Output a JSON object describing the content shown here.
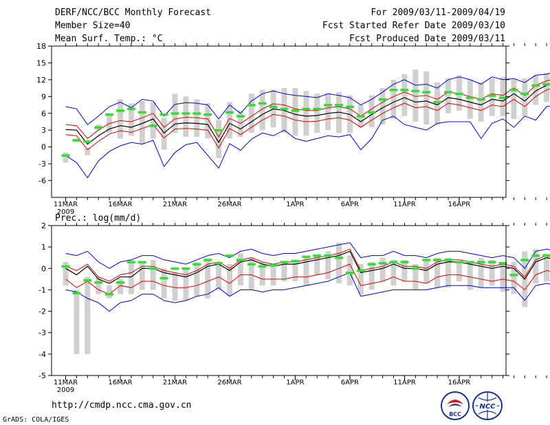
{
  "header": {
    "title": "DERF/NCC/BCC Monthly Forecast",
    "member_size": "Member Size=40",
    "variable": "Mean Surf. Temp.: °C",
    "period": "For 2009/03/11-2009/04/19",
    "started": "Fcst Started Refer Date 2009/03/10",
    "produced": "Fcst Produced Date 2009/03/11"
  },
  "footer": {
    "url": "http://cmdp.ncc.cma.gov.cn",
    "credit": "GrADS: COLA/IGES",
    "logo_bcc": "BCC",
    "logo_ncc": "NCC"
  },
  "colors": {
    "box": "#d0d0d0",
    "green": "#33dd33",
    "envelope": "#0000dd",
    "spread": "#dd0000",
    "mean": "#000000"
  },
  "chart_data": [
    {
      "type": "line",
      "title": "Mean Surf. Temp.: °C",
      "xlabel": "",
      "ylabel": "",
      "x_ticks": [
        "11MAR",
        "16MAR",
        "21MAR",
        "26MAR",
        "1APR",
        "6APR",
        "11APR",
        "16APR"
      ],
      "x_tick_days": [
        0,
        5,
        10,
        15,
        21,
        26,
        31,
        36
      ],
      "year_label": "2009",
      "ylim": [
        -9,
        18
      ],
      "y_ticks": [
        -6,
        -3,
        0,
        3,
        6,
        9,
        12,
        15,
        18
      ],
      "grid": false,
      "series": [
        {
          "name": "mean",
          "values": [
            3.1,
            3.0,
            0.5,
            2.0,
            3.2,
            3.8,
            3.5,
            4.2,
            5.0,
            2.5,
            4.1,
            4.3,
            4.2,
            4.0,
            0.8,
            4.2,
            3.2,
            4.5,
            5.8,
            6.8,
            6.5,
            5.8,
            5.5,
            5.6,
            6.0,
            6.2,
            5.8,
            4.5,
            5.8,
            7.0,
            8.0,
            8.8,
            8.0,
            8.2,
            7.5,
            8.8,
            8.5,
            8.0,
            7.5,
            8.5,
            8.2,
            9.5,
            8.2,
            10.0,
            11.0,
            11.5,
            12.0
          ]
        },
        {
          "name": "upper",
          "values": [
            4.0,
            3.8,
            1.5,
            3.0,
            4.2,
            4.7,
            4.5,
            5.2,
            6.0,
            3.5,
            5.0,
            5.3,
            5.2,
            5.0,
            1.8,
            5.1,
            4.2,
            5.5,
            6.8,
            7.7,
            7.5,
            6.8,
            6.5,
            6.5,
            7.0,
            7.2,
            6.8,
            5.5,
            6.8,
            8.0,
            9.0,
            9.8,
            9.0,
            9.2,
            8.5,
            9.8,
            9.5,
            9.0,
            8.5,
            9.5,
            9.2,
            10.5,
            9.2,
            11.0,
            11.8,
            12.3,
            12.8
          ]
        },
        {
          "name": "lower",
          "values": [
            2.2,
            2.0,
            -0.5,
            1.0,
            2.3,
            2.9,
            2.6,
            3.3,
            4.0,
            1.6,
            3.2,
            3.3,
            3.2,
            3.0,
            -0.2,
            3.3,
            2.2,
            3.5,
            4.8,
            5.8,
            5.5,
            4.8,
            4.5,
            4.6,
            5.0,
            5.2,
            4.8,
            3.5,
            4.8,
            6.0,
            7.0,
            7.8,
            7.0,
            7.2,
            6.5,
            7.8,
            7.5,
            7.0,
            6.5,
            7.5,
            7.2,
            8.5,
            7.2,
            9.0,
            10.2,
            10.7,
            11.2
          ]
        },
        {
          "name": "max",
          "values": [
            7.2,
            6.8,
            4.0,
            5.5,
            7.2,
            8.0,
            7.0,
            8.5,
            8.2,
            5.5,
            7.6,
            7.9,
            7.8,
            7.5,
            5.0,
            7.5,
            6.0,
            8.2,
            9.5,
            10.0,
            9.5,
            9.2,
            9.0,
            8.8,
            9.5,
            9.2,
            8.8,
            7.5,
            8.5,
            9.8,
            11.2,
            12.0,
            11.0,
            11.2,
            10.5,
            12.0,
            12.5,
            12.0,
            11.2,
            12.5,
            12.0,
            12.2,
            11.5,
            12.8,
            13.0,
            13.5,
            14.5
          ]
        },
        {
          "name": "min",
          "values": [
            -1.5,
            -2.8,
            -5.5,
            -2.5,
            -0.8,
            0.2,
            0.8,
            0.5,
            1.2,
            -3.5,
            -1.0,
            0.4,
            0.8,
            -1.5,
            -3.8,
            0.6,
            -0.6,
            1.4,
            2.5,
            2.0,
            3.0,
            1.5,
            1.0,
            1.5,
            2.0,
            1.8,
            2.2,
            -0.5,
            1.5,
            4.8,
            5.5,
            4.0,
            3.5,
            3.0,
            4.2,
            4.5,
            4.5,
            4.5,
            1.5,
            4.2,
            5.0,
            3.5,
            5.5,
            4.8,
            7.2,
            7.5,
            8.5
          ]
        },
        {
          "name": "box_top",
          "values": [
            -1.0,
            1.5,
            -0.2,
            4.0,
            6.0,
            8.5,
            7.8,
            8.2,
            8.0,
            5.2,
            9.5,
            9.0,
            8.5,
            7.8,
            4.8,
            8.0,
            6.5,
            9.5,
            10.2,
            10.2,
            10.5,
            10.5,
            10.0,
            9.5,
            9.5,
            9.8,
            9.2,
            7.5,
            9.2,
            10.5,
            12.0,
            13.0,
            13.8,
            13.5,
            11.5,
            12.2,
            12.8,
            12.0,
            11.5,
            12.2,
            12.5,
            12.0,
            12.2,
            12.8,
            13.2,
            13.5,
            14.0
          ]
        },
        {
          "name": "box_bottom",
          "values": [
            -2.8,
            1.0,
            -1.5,
            3.0,
            2.5,
            1.5,
            2.0,
            0.5,
            1.5,
            -0.5,
            2.5,
            1.8,
            1.8,
            1.5,
            -2.0,
            1.5,
            1.8,
            2.5,
            3.0,
            3.5,
            2.5,
            2.0,
            2.0,
            2.5,
            3.0,
            2.5,
            2.5,
            3.5,
            3.5,
            4.0,
            5.0,
            5.5,
            4.5,
            4.0,
            4.0,
            6.0,
            6.5,
            5.0,
            4.5,
            5.5,
            5.5,
            5.0,
            5.5,
            7.5,
            8.0,
            8.5,
            10.0
          ]
        },
        {
          "name": "green",
          "values": [
            -1.5,
            1.2,
            1.0,
            3.5,
            5.8,
            6.5,
            6.8,
            6.2,
            3.8,
            5.8,
            6.0,
            6.0,
            6.0,
            5.8,
            3.0,
            6.2,
            5.5,
            7.5,
            7.8,
            7.2,
            6.8,
            6.5,
            6.8,
            6.8,
            7.5,
            7.5,
            7.2,
            5.5,
            6.2,
            8.5,
            10.2,
            10.2,
            10.0,
            9.8,
            8.0,
            9.8,
            9.5,
            8.8,
            8.5,
            9.2,
            8.8,
            10.2,
            9.5,
            11.0,
            11.2,
            11.5,
            12.8
          ]
        }
      ]
    },
    {
      "type": "line",
      "title": "Prec.: log(mm/d)",
      "xlabel": "",
      "ylabel": "",
      "x_ticks": [
        "11MAR",
        "16MAR",
        "21MAR",
        "26MAR",
        "1APR",
        "6APR",
        "11APR",
        "16APR"
      ],
      "x_tick_days": [
        0,
        5,
        10,
        15,
        21,
        26,
        31,
        36
      ],
      "year_label": "2009",
      "ylim": [
        -5,
        2
      ],
      "y_ticks": [
        -5,
        -4,
        -3,
        -2,
        -1,
        0,
        1,
        2
      ],
      "grid": false,
      "series": [
        {
          "name": "mean",
          "values": [
            0.0,
            -0.3,
            0.1,
            -0.5,
            -0.7,
            -0.4,
            -0.4,
            0.0,
            0.0,
            -0.2,
            -0.3,
            -0.4,
            -0.2,
            0.1,
            0.2,
            -0.1,
            0.3,
            0.4,
            0.2,
            0.1,
            0.2,
            0.2,
            0.3,
            0.4,
            0.5,
            0.6,
            0.8,
            -0.2,
            -0.1,
            0.0,
            0.2,
            0.0,
            0.0,
            -0.1,
            0.2,
            0.3,
            0.3,
            0.2,
            0.1,
            0.0,
            0.1,
            0.0,
            -0.5,
            0.3,
            0.5,
            0.4,
            0.2
          ]
        },
        {
          "name": "upper",
          "values": [
            0.1,
            -0.1,
            0.2,
            -0.4,
            -0.6,
            -0.3,
            -0.2,
            0.1,
            0.1,
            -0.1,
            -0.2,
            -0.3,
            -0.1,
            0.2,
            0.3,
            0.0,
            0.4,
            0.5,
            0.3,
            0.2,
            0.3,
            0.3,
            0.4,
            0.5,
            0.6,
            0.7,
            0.9,
            -0.1,
            0.0,
            0.1,
            0.3,
            0.1,
            0.1,
            0.0,
            0.3,
            0.4,
            0.4,
            0.3,
            0.2,
            0.1,
            0.2,
            0.1,
            -0.4,
            0.4,
            0.6,
            0.5,
            0.3
          ]
        },
        {
          "name": "lower",
          "values": [
            -0.5,
            -0.9,
            -0.6,
            -1.0,
            -1.2,
            -0.8,
            -0.9,
            -0.6,
            -0.6,
            -0.8,
            -0.9,
            -0.9,
            -0.8,
            -0.6,
            -0.4,
            -0.7,
            -0.3,
            -0.3,
            -0.5,
            -0.5,
            -0.5,
            -0.4,
            -0.4,
            -0.3,
            -0.2,
            0.0,
            0.2,
            -0.8,
            -0.7,
            -0.6,
            -0.4,
            -0.6,
            -0.6,
            -0.7,
            -0.4,
            -0.3,
            -0.3,
            -0.4,
            -0.5,
            -0.6,
            -0.5,
            -0.6,
            -1.0,
            -0.3,
            -0.1,
            -0.2,
            -0.4
          ]
        },
        {
          "name": "max",
          "values": [
            0.7,
            0.6,
            0.8,
            0.3,
            0.0,
            0.3,
            0.4,
            0.6,
            0.6,
            0.4,
            0.3,
            0.2,
            0.4,
            0.6,
            0.7,
            0.5,
            0.8,
            0.9,
            0.7,
            0.6,
            0.7,
            0.7,
            0.8,
            0.9,
            1.0,
            1.1,
            1.2,
            0.5,
            0.6,
            0.6,
            0.8,
            0.6,
            0.6,
            0.5,
            0.7,
            0.8,
            0.8,
            0.7,
            0.6,
            0.5,
            0.6,
            0.5,
            0.0,
            0.8,
            0.9,
            0.8,
            0.7
          ]
        },
        {
          "name": "min",
          "values": [
            -1.0,
            -1.1,
            -1.4,
            -1.6,
            -2.0,
            -1.6,
            -1.5,
            -1.2,
            -1.2,
            -1.5,
            -1.6,
            -1.5,
            -1.3,
            -1.2,
            -0.9,
            -1.3,
            -1.0,
            -1.0,
            -1.1,
            -1.0,
            -1.0,
            -0.9,
            -0.8,
            -0.7,
            -0.6,
            -0.4,
            -0.2,
            -1.3,
            -1.2,
            -1.1,
            -1.0,
            -1.0,
            -1.0,
            -1.0,
            -0.9,
            -0.8,
            -0.8,
            -0.8,
            -0.9,
            -0.9,
            -0.9,
            -0.9,
            -1.5,
            -0.8,
            -0.7,
            -0.8,
            -1.0
          ]
        },
        {
          "name": "box_top",
          "values": [
            0.3,
            -1.0,
            -0.4,
            -0.4,
            -0.8,
            -0.5,
            0.4,
            0.3,
            0.4,
            0.0,
            -0.2,
            0.0,
            0.3,
            0.4,
            0.3,
            0.2,
            0.7,
            0.5,
            0.3,
            0.2,
            0.3,
            0.4,
            0.5,
            0.6,
            0.8,
            1.2,
            0.6,
            0.2,
            0.3,
            0.5,
            0.4,
            0.4,
            0.2,
            0.4,
            0.5,
            0.5,
            0.3,
            0.3,
            0.5,
            0.4,
            0.3,
            0.3,
            0.8,
            0.9,
            0.7,
            0.4,
            0.3
          ]
        },
        {
          "name": "box_bottom",
          "values": [
            -0.8,
            -4.0,
            -4.0,
            -1.2,
            -1.4,
            -1.2,
            -1.2,
            -1.0,
            -1.0,
            -1.4,
            -1.5,
            -1.5,
            -1.3,
            -1.4,
            -1.0,
            -1.3,
            -0.8,
            -1.0,
            -0.8,
            -0.8,
            -0.6,
            -0.6,
            -0.8,
            -0.3,
            -0.5,
            -0.7,
            -0.8,
            -1.2,
            -1.0,
            -0.6,
            -0.8,
            -0.6,
            -1.0,
            -0.7,
            -0.9,
            -0.9,
            -0.6,
            -1.0,
            -0.9,
            -0.8,
            -1.1,
            -1.2,
            -1.8,
            -0.7,
            -0.6,
            -0.7,
            -1.0
          ]
        },
        {
          "name": "green",
          "values": [
            0.1,
            -1.15,
            -0.55,
            -0.65,
            -1.2,
            -0.65,
            0.3,
            0.3,
            0.0,
            -0.45,
            0.0,
            0.0,
            0.2,
            0.4,
            0.25,
            0.6,
            0.4,
            0.2,
            0.1,
            0.15,
            0.3,
            0.35,
            0.55,
            0.6,
            0.6,
            0.5,
            -0.2,
            -0.1,
            0.2,
            0.25,
            0.3,
            0.3,
            0.0,
            0.4,
            0.4,
            0.4,
            0.3,
            0.3,
            0.3,
            0.3,
            0.25,
            -0.3,
            0.4,
            0.6,
            0.6,
            0.3,
            0.2
          ]
        }
      ]
    }
  ]
}
